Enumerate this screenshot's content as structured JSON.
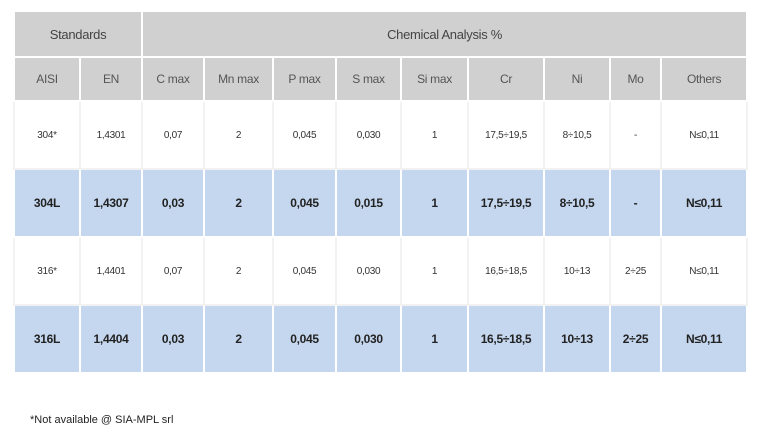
{
  "table": {
    "group_headers": {
      "standards": "Standards",
      "chemical": "Chemical Analysis %"
    },
    "columns": [
      "AISI",
      "EN",
      "C max",
      "Mn max",
      "P max",
      "S max",
      "Si max",
      "Cr",
      "Ni",
      "Mo",
      "Others"
    ],
    "rows": [
      {
        "highlighted": false,
        "cells": [
          "304*",
          "1,4301",
          "0,07",
          "2",
          "0,045",
          "0,030",
          "1",
          "17,5÷19,5",
          "8÷10,5",
          "-",
          "N≤0,11"
        ]
      },
      {
        "highlighted": true,
        "cells": [
          "304L",
          "1,4307",
          "0,03",
          "2",
          "0,045",
          "0,015",
          "1",
          "17,5÷19,5",
          "8÷10,5",
          "-",
          "N≤0,11"
        ]
      },
      {
        "highlighted": false,
        "cells": [
          "316*",
          "1,4401",
          "0,07",
          "2",
          "0,045",
          "0,030",
          "1",
          "16,5÷18,5",
          "10÷13",
          "2÷25",
          "N≤0,11"
        ]
      },
      {
        "highlighted": true,
        "cells": [
          "316L",
          "1,4404",
          "0,03",
          "2",
          "0,045",
          "0,030",
          "1",
          "16,5÷18,5",
          "10÷13",
          "2÷25",
          "N≤0,11"
        ]
      }
    ]
  },
  "colors": {
    "header_bg": "#d0d0d0",
    "highlight_bg": "#c5d7ef"
  },
  "footnote": "*Not available @ SIA-MPL srl"
}
